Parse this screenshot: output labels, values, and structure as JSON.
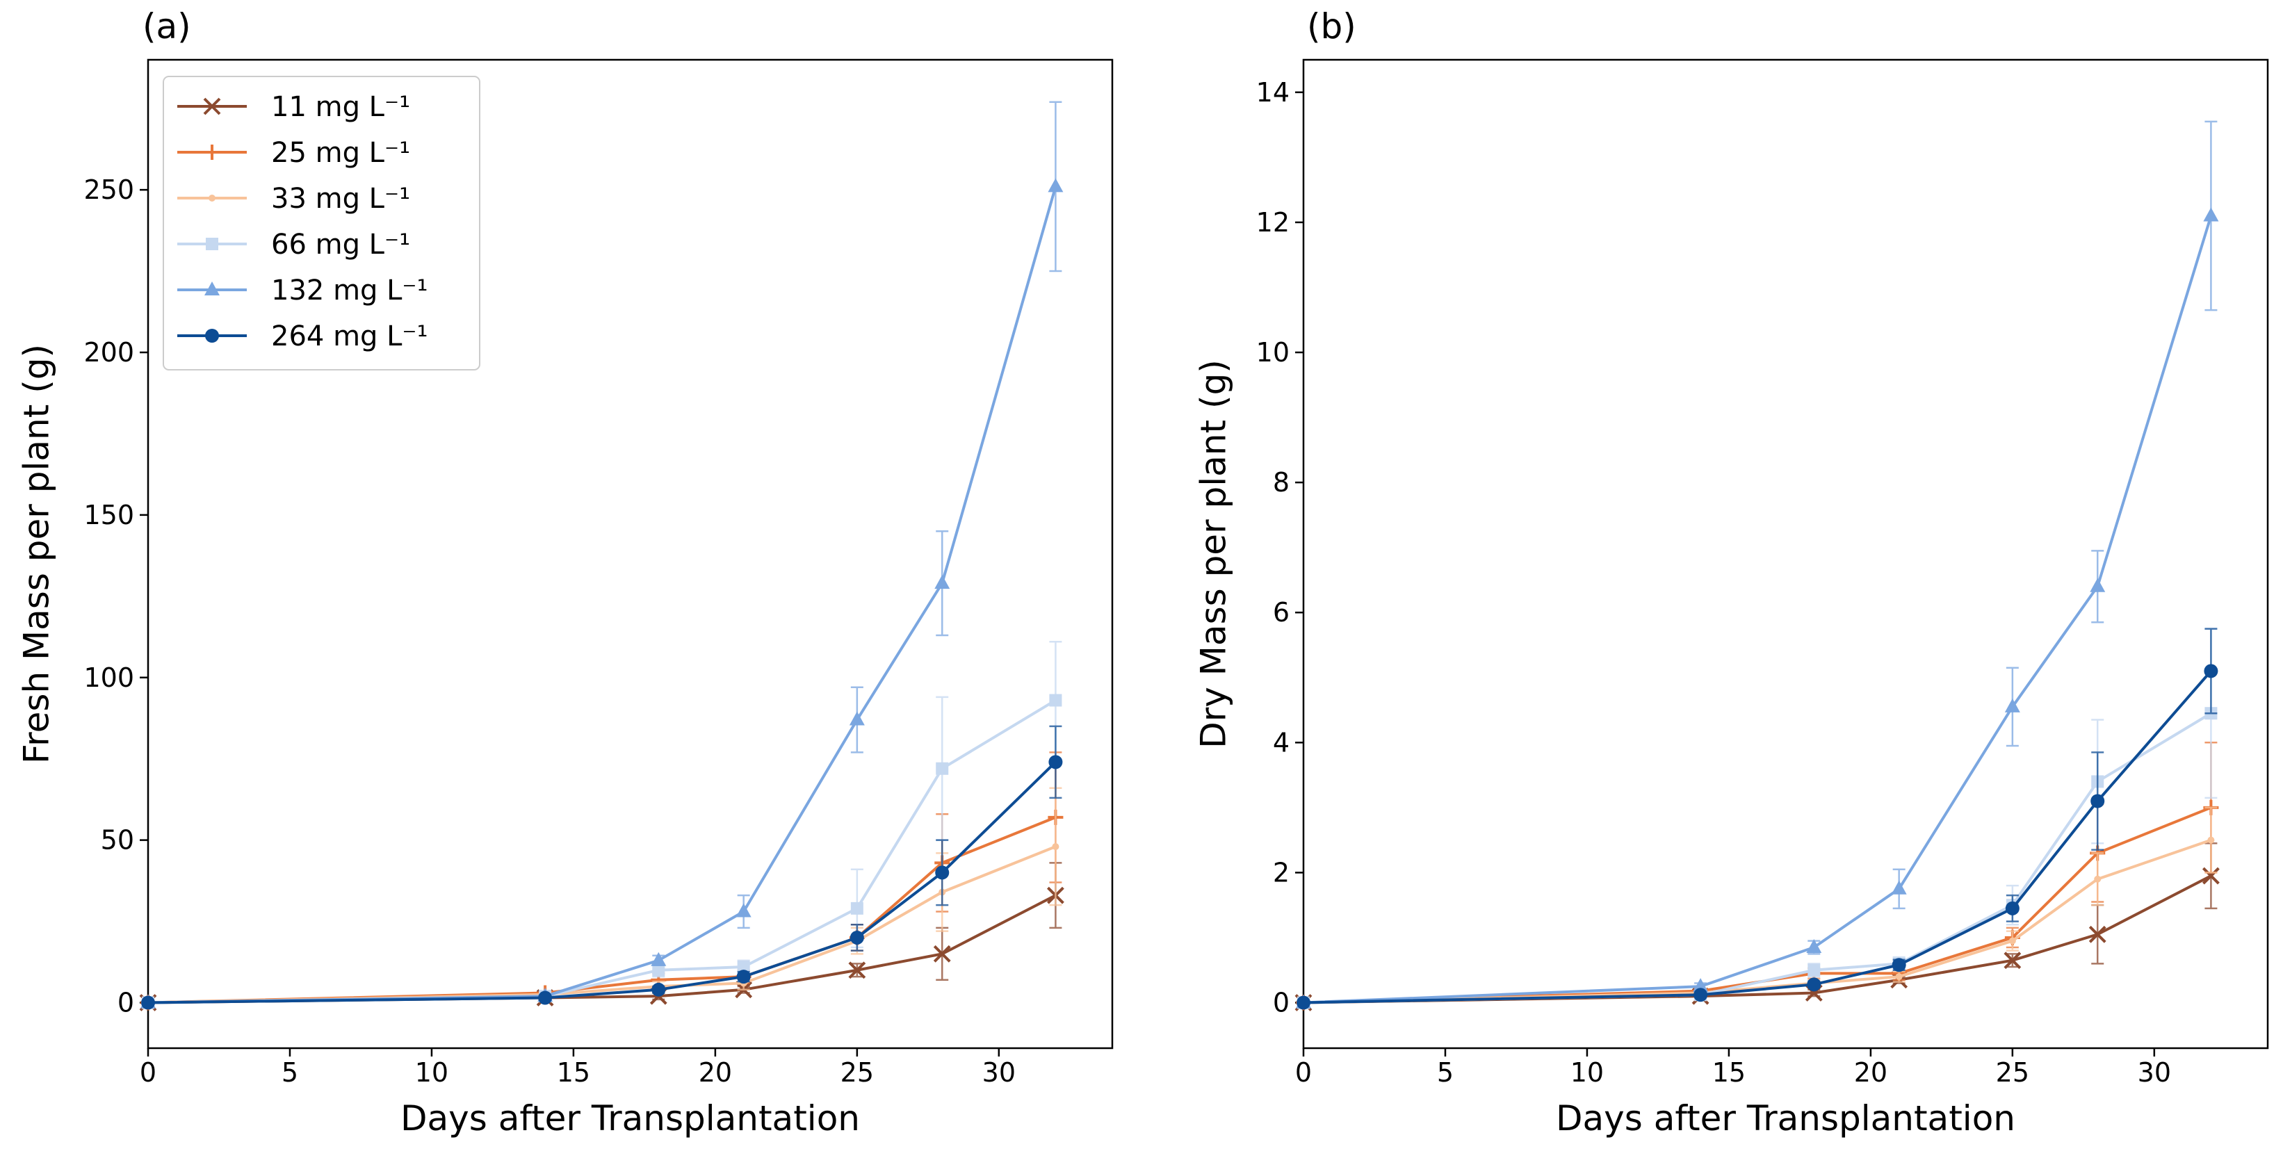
{
  "chart_data": [
    {
      "panel_label": "(a)",
      "type": "line",
      "xlabel": "Days after Transplantation",
      "ylabel": "Fresh Mass per plant (g)",
      "xlim": [
        0,
        34
      ],
      "ylim": [
        -14,
        290
      ],
      "xticks": [
        0,
        5,
        10,
        15,
        20,
        25,
        30
      ],
      "yticks": [
        0,
        50,
        100,
        150,
        200,
        250
      ],
      "legend_position": "top-left",
      "x": [
        0,
        14,
        18,
        21,
        25,
        28,
        32
      ],
      "series": [
        {
          "name": "11 mg L⁻¹",
          "color": "#8c4a2f",
          "marker": "x",
          "values": [
            0,
            1.5,
            2,
            4,
            10,
            15,
            33
          ],
          "errors": [
            0,
            0.5,
            1,
            1,
            2,
            8,
            10
          ]
        },
        {
          "name": "25 mg L⁻¹",
          "color": "#e8773a",
          "marker": "+",
          "values": [
            0,
            3,
            7,
            8,
            20,
            43,
            57
          ],
          "errors": [
            0,
            0.5,
            2,
            2,
            4,
            15,
            20
          ]
        },
        {
          "name": "33 mg L⁻¹",
          "color": "#f8c39a",
          "marker": "dot",
          "values": [
            0,
            2.5,
            5,
            6,
            19,
            34,
            48
          ],
          "errors": [
            0,
            0.5,
            1.5,
            2,
            4,
            12,
            18
          ]
        },
        {
          "name": "66 mg L⁻¹",
          "color": "#c5d8f0",
          "marker": "square",
          "values": [
            0,
            2,
            10,
            11,
            29,
            72,
            93
          ],
          "errors": [
            0,
            0.5,
            2,
            2,
            12,
            22,
            18
          ]
        },
        {
          "name": "132 mg L⁻¹",
          "color": "#7aa6e0",
          "marker": "triangle",
          "values": [
            0,
            2,
            13,
            28,
            87,
            129,
            251
          ],
          "errors": [
            0,
            0.5,
            1.5,
            5,
            10,
            16,
            26
          ]
        },
        {
          "name": "264 mg L⁻¹",
          "color": "#0d4c94",
          "marker": "circle",
          "values": [
            0,
            1.5,
            4,
            8,
            20,
            40,
            74
          ],
          "errors": [
            0,
            0.5,
            1,
            1.5,
            4,
            10,
            11
          ]
        }
      ]
    },
    {
      "panel_label": "(b)",
      "type": "line",
      "xlabel": "Days after Transplantation",
      "ylabel": "Dry Mass per plant (g)",
      "xlim": [
        0,
        34
      ],
      "ylim": [
        -0.7,
        14.5
      ],
      "xticks": [
        0,
        5,
        10,
        15,
        20,
        25,
        30
      ],
      "yticks": [
        0,
        2,
        4,
        6,
        8,
        10,
        12,
        14
      ],
      "x": [
        0,
        14,
        18,
        21,
        25,
        28,
        32
      ],
      "series": [
        {
          "name": "11 mg L⁻¹",
          "color": "#8c4a2f",
          "marker": "x",
          "values": [
            0,
            0.1,
            0.15,
            0.35,
            0.65,
            1.05,
            1.95
          ],
          "errors": [
            0,
            0.03,
            0.05,
            0.05,
            0.1,
            0.45,
            0.5
          ]
        },
        {
          "name": "25 mg L⁻¹",
          "color": "#e8773a",
          "marker": "+",
          "values": [
            0,
            0.18,
            0.45,
            0.45,
            1.0,
            2.3,
            3.0
          ],
          "errors": [
            0,
            0.03,
            0.08,
            0.1,
            0.15,
            0.75,
            1.0
          ]
        },
        {
          "name": "33 mg L⁻¹",
          "color": "#f8c39a",
          "marker": "dot",
          "values": [
            0,
            0.15,
            0.3,
            0.4,
            0.95,
            1.9,
            2.5
          ],
          "errors": [
            0,
            0.03,
            0.06,
            0.08,
            0.15,
            0.4,
            0.5
          ]
        },
        {
          "name": "66 mg L⁻¹",
          "color": "#c5d8f0",
          "marker": "square",
          "values": [
            0,
            0.12,
            0.5,
            0.6,
            1.5,
            3.4,
            4.45
          ],
          "errors": [
            0,
            0.03,
            0.1,
            0.1,
            0.3,
            0.95,
            1.3
          ]
        },
        {
          "name": "132 mg L⁻¹",
          "color": "#7aa6e0",
          "marker": "triangle",
          "values": [
            0,
            0.25,
            0.85,
            1.75,
            4.55,
            6.4,
            12.1
          ],
          "errors": [
            0,
            0.05,
            0.1,
            0.3,
            0.6,
            0.55,
            1.45
          ]
        },
        {
          "name": "264 mg L⁻¹",
          "color": "#0d4c94",
          "marker": "circle",
          "values": [
            0,
            0.12,
            0.28,
            0.58,
            1.45,
            3.1,
            5.1
          ],
          "errors": [
            0,
            0.03,
            0.05,
            0.08,
            0.2,
            0.75,
            0.65
          ]
        }
      ]
    }
  ]
}
